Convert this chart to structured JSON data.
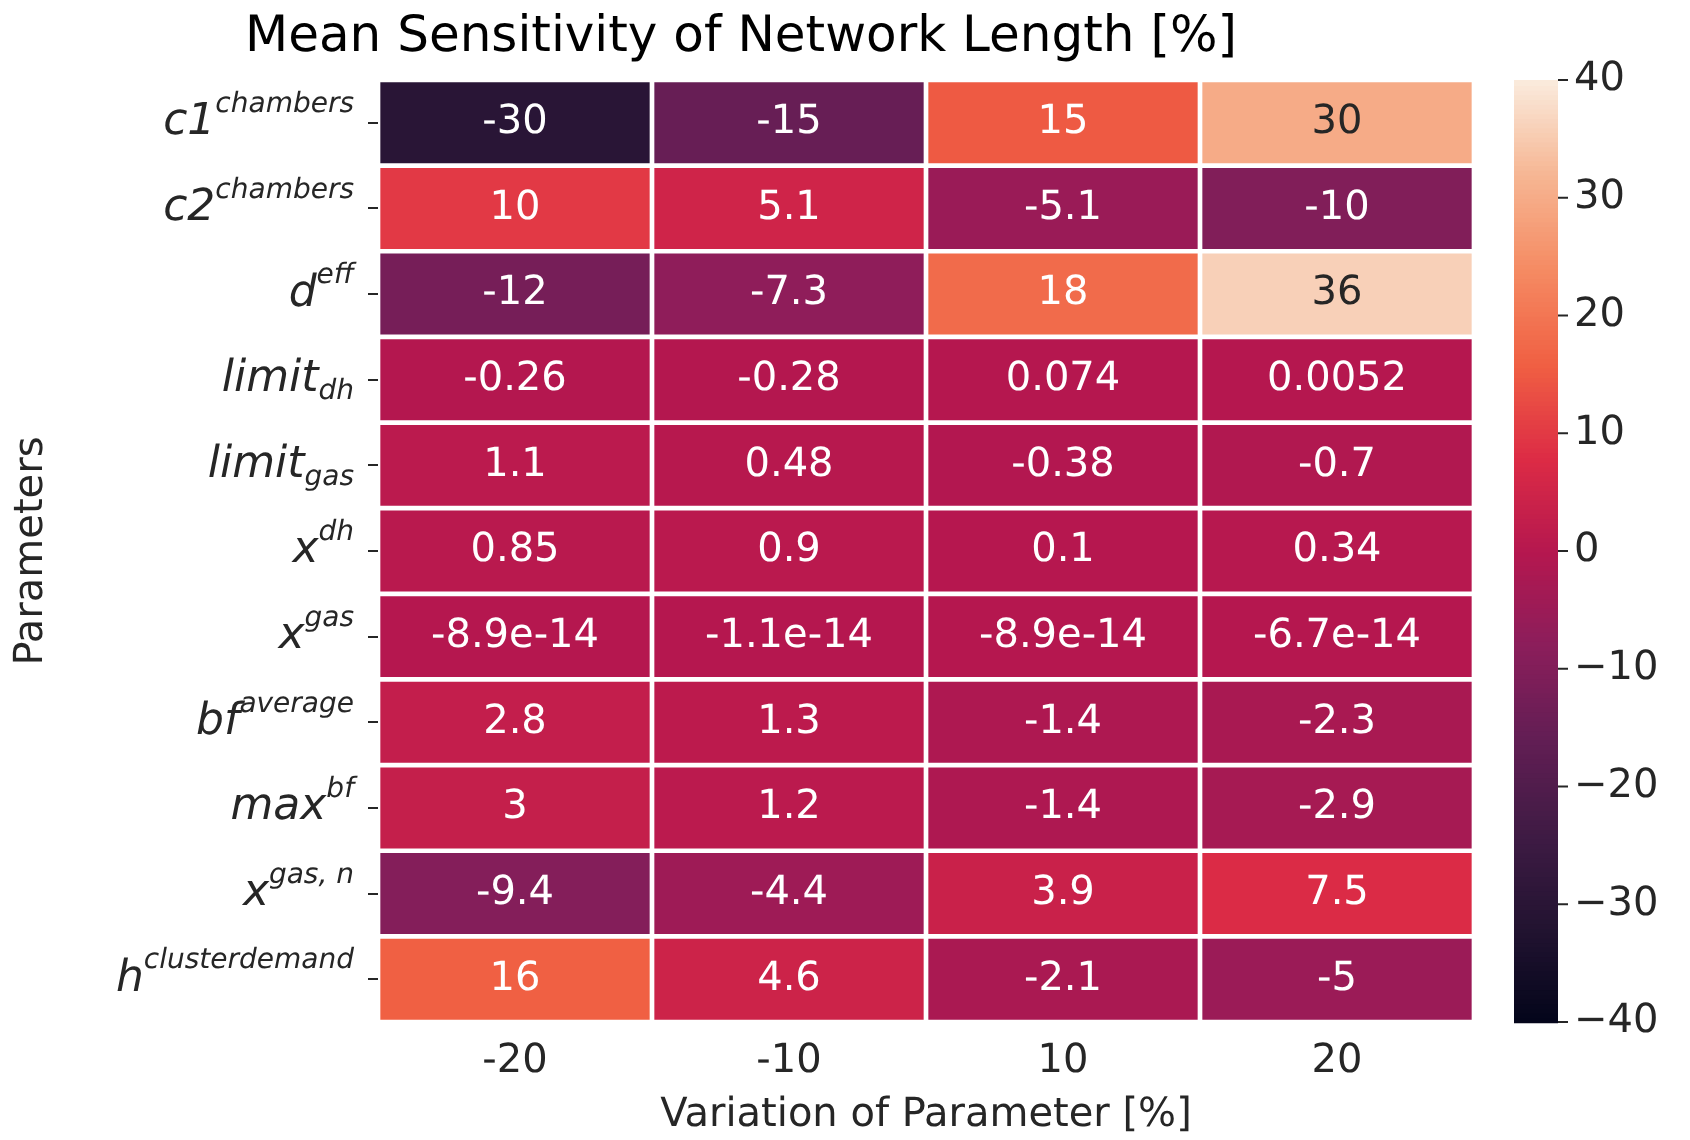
{
  "chart_data": {
    "type": "heatmap",
    "title": "Mean Sensitivity of Network Length [%]",
    "xlabel": "Variation of Parameter [%]",
    "ylabel": "Parameters",
    "categories": [
      "-20",
      "-10",
      "10",
      "20"
    ],
    "y_categories": [
      "c1$^{chambers}$",
      "c2$^{chambers}$",
      "d$^{eff}$",
      "limit$_{dh}$",
      "limit$_{gas}$",
      "x$^{dh}$",
      "x$^{gas}$",
      "bf$^{average}$",
      "max$^{bf}$",
      "x$^{gas, n}$",
      "h$^{clusterdemand}$"
    ],
    "cells": [
      [
        -30,
        -15,
        15,
        30
      ],
      [
        10,
        5.1,
        -5.1,
        -10
      ],
      [
        -12,
        -7.3,
        18,
        36
      ],
      [
        -0.26,
        -0.28,
        0.074,
        0.0052
      ],
      [
        1.1,
        0.48,
        -0.38,
        -0.7
      ],
      [
        0.85,
        0.9,
        0.1,
        0.34
      ],
      [
        -8.9e-14,
        -1.1e-14,
        -8.9e-14,
        -6.7e-14
      ],
      [
        2.8,
        1.3,
        -1.4,
        -2.3
      ],
      [
        3,
        1.2,
        -1.4,
        -2.9
      ],
      [
        -9.4,
        -4.4,
        3.9,
        7.5
      ],
      [
        16,
        4.6,
        -2.1,
        -5
      ]
    ],
    "clim": [
      -40,
      40
    ],
    "cticks": [
      -40,
      -30,
      -20,
      -10,
      0,
      10,
      20,
      30,
      40
    ],
    "data_labels": true
  }
}
